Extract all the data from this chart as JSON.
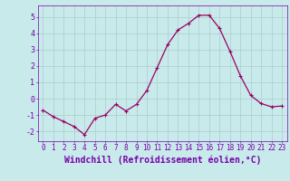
{
  "x": [
    0,
    1,
    2,
    3,
    4,
    5,
    6,
    7,
    8,
    9,
    10,
    11,
    12,
    13,
    14,
    15,
    16,
    17,
    18,
    19,
    20,
    21,
    22,
    23
  ],
  "y": [
    -0.7,
    -1.1,
    -1.4,
    -1.7,
    -2.2,
    -1.2,
    -1.0,
    -0.35,
    -0.75,
    -0.35,
    0.5,
    1.9,
    3.3,
    4.2,
    4.6,
    5.1,
    5.1,
    4.3,
    2.9,
    1.4,
    0.2,
    -0.3,
    -0.5,
    -0.45
  ],
  "line_color": "#990066",
  "marker": "+",
  "marker_size": 3,
  "marker_lw": 0.8,
  "bg_color": "#c8eaea",
  "grid_color": "#aacccc",
  "xlabel": "Windchill (Refroidissement éolien,°C)",
  "xlabel_fontsize": 7,
  "yticks": [
    -2,
    -1,
    0,
    1,
    2,
    3,
    4,
    5
  ],
  "xlim": [
    -0.5,
    23.5
  ],
  "ylim": [
    -2.6,
    5.7
  ],
  "tick_fontsize": 5.5,
  "tick_color": "#7700aa",
  "spine_color": "#7700aa",
  "line_width": 0.9
}
